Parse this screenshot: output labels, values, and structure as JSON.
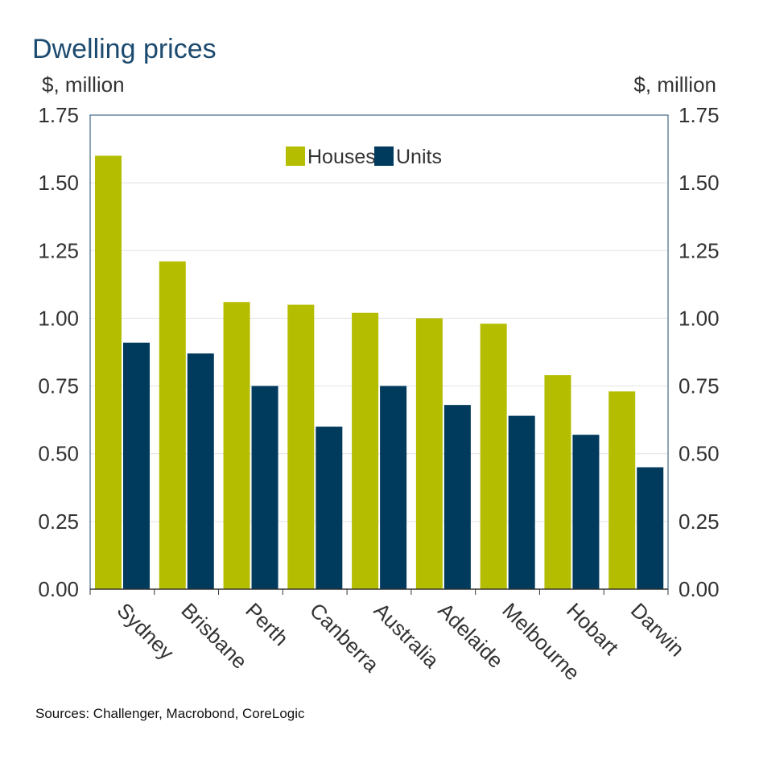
{
  "chart_data": {
    "type": "bar",
    "title": "Dwelling prices",
    "ylabel_left": "$, million",
    "ylabel_right": "$, million",
    "categories": [
      "Sydney",
      "Brisbane",
      "Perth",
      "Canberra",
      "Australia",
      "Adelaide",
      "Melbourne",
      "Hobart",
      "Darwin"
    ],
    "series": [
      {
        "name": "Houses",
        "color": "#b5bd00",
        "values": [
          1.6,
          1.21,
          1.06,
          1.05,
          1.02,
          1.0,
          0.98,
          0.79,
          0.73
        ]
      },
      {
        "name": "Units",
        "color": "#003a5d",
        "values": [
          0.91,
          0.87,
          0.75,
          0.6,
          0.75,
          0.68,
          0.64,
          0.57,
          0.45
        ]
      }
    ],
    "ylim": [
      0,
      1.75
    ],
    "yticks": [
      "0.00",
      "0.25",
      "0.50",
      "0.75",
      "1.00",
      "1.25",
      "1.50",
      "1.75"
    ],
    "grid": true,
    "legend_placement": "top-center",
    "source": "Sources: Challenger, Macrobond, CoreLogic"
  }
}
